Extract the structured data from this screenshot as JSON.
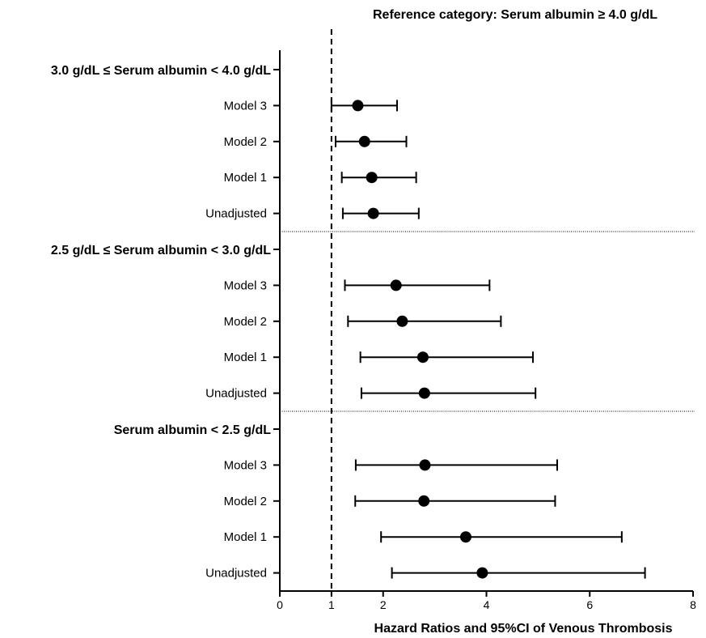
{
  "chart_data": {
    "type": "forest",
    "title": "Reference category: Serum albumin ≥ 4.0 g/dL",
    "xlabel": "Hazard Ratios and 95%CI of Venous Thrombosis",
    "xlim": [
      0,
      8
    ],
    "xticks": [
      0,
      1,
      2,
      4,
      6,
      8
    ],
    "reference_line": 1,
    "groups": [
      {
        "label": "3.0 g/dL ≤ Serum albumin < 4.0 g/dL",
        "rows": [
          {
            "label": "Model 3",
            "hr": 1.51,
            "lo": 1.0,
            "hi": 2.27
          },
          {
            "label": "Model 2",
            "hr": 1.64,
            "lo": 1.08,
            "hi": 2.45
          },
          {
            "label": "Model 1",
            "hr": 1.78,
            "lo": 1.2,
            "hi": 2.64
          },
          {
            "label": "Unadjusted",
            "hr": 1.81,
            "lo": 1.22,
            "hi": 2.69
          }
        ]
      },
      {
        "label": "2.5 g/dL ≤ Serum albumin < 3.0 g/dL",
        "rows": [
          {
            "label": "Model 3",
            "hr": 2.25,
            "lo": 1.26,
            "hi": 4.06
          },
          {
            "label": "Model 2",
            "hr": 2.37,
            "lo": 1.32,
            "hi": 4.28
          },
          {
            "label": "Model 1",
            "hr": 2.77,
            "lo": 1.56,
            "hi": 4.9
          },
          {
            "label": "Unadjusted",
            "hr": 2.8,
            "lo": 1.58,
            "hi": 4.95
          }
        ]
      },
      {
        "label": "Serum albumin < 2.5 g/dL",
        "rows": [
          {
            "label": "Model 3",
            "hr": 2.81,
            "lo": 1.47,
            "hi": 5.37
          },
          {
            "label": "Model 2",
            "hr": 2.79,
            "lo": 1.46,
            "hi": 5.33
          },
          {
            "label": "Model 1",
            "hr": 3.6,
            "lo": 1.96,
            "hi": 6.62
          },
          {
            "label": "Unadjusted",
            "hr": 3.92,
            "lo": 2.17,
            "hi": 7.07
          }
        ]
      }
    ]
  }
}
